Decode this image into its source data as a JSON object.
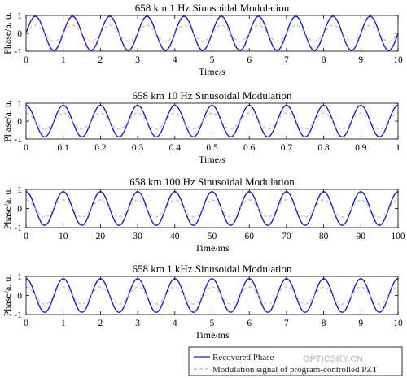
{
  "chart_data": [
    {
      "type": "line",
      "title": "658 km 1 Hz Sinusoidal Modulation",
      "xlabel": "Time/s",
      "ylabel": "Phase/a. u.",
      "xlim": [
        0,
        10
      ],
      "ylim": [
        -1,
        1
      ],
      "xticks": [
        "0",
        "1",
        "2",
        "3",
        "4",
        "5",
        "6",
        "7",
        "8",
        "9",
        "10"
      ],
      "yticks": [
        "-1",
        "0",
        "1"
      ],
      "frequency_cycles_per_unit": 1,
      "series": [
        {
          "name": "Recovered Phase",
          "function": "sine",
          "amplitude": 0.95,
          "phase": 0,
          "color": "#1f1fbf",
          "style": "solid"
        },
        {
          "name": "Modulation signal of program-controlled PZT",
          "function": "sine",
          "amplitude": 0.45,
          "phase": 0,
          "color": "#a8b8cc",
          "style": "dashed"
        }
      ]
    },
    {
      "type": "line",
      "title": "658 km 10 Hz Sinusoidal Modulation",
      "xlabel": "Time/s",
      "ylabel": "Phase/a. u.",
      "xlim": [
        0,
        1
      ],
      "ylim": [
        -1,
        1
      ],
      "xticks": [
        "0",
        "0.1",
        "0.2",
        "0.3",
        "0.4",
        "0.5",
        "0.6",
        "0.7",
        "0.8",
        "0.9",
        "1"
      ],
      "yticks": [
        "-1",
        "0",
        "1"
      ],
      "frequency_cycles_per_unit": 10,
      "series": [
        {
          "name": "Recovered Phase",
          "function": "cosine",
          "amplitude": 0.88,
          "phase": 0,
          "color": "#1f1fbf",
          "style": "solid"
        },
        {
          "name": "Modulation signal of program-controlled PZT",
          "function": "cosine",
          "amplitude": 0.45,
          "phase": 0,
          "color": "#a8b8cc",
          "style": "dashed"
        }
      ]
    },
    {
      "type": "line",
      "title": "658 km 100 Hz Sinusoidal Modulation",
      "xlabel": "Time/ms",
      "ylabel": "Phase/a. u.",
      "xlim": [
        0,
        100
      ],
      "ylim": [
        -1,
        1
      ],
      "xticks": [
        "0",
        "10",
        "20",
        "30",
        "40",
        "50",
        "60",
        "70",
        "80",
        "90",
        "100"
      ],
      "yticks": [
        "-1",
        "0",
        "1"
      ],
      "frequency_cycles_per_unit": 0.1,
      "series": [
        {
          "name": "Recovered Phase",
          "function": "cosine",
          "amplitude": 0.88,
          "phase": 0,
          "color": "#1f1fbf",
          "style": "solid"
        },
        {
          "name": "Modulation signal of program-controlled PZT",
          "function": "cosine",
          "amplitude": 0.45,
          "phase": 0,
          "color": "#a8b8cc",
          "style": "dashed"
        }
      ]
    },
    {
      "type": "line",
      "title": "658 km 1 kHz Sinusoidal Modulation",
      "xlabel": "Time/ms",
      "ylabel": "Phase/a. u.",
      "xlim": [
        0,
        10
      ],
      "ylim": [
        -1,
        1
      ],
      "xticks": [
        "0",
        "1",
        "2",
        "3",
        "4",
        "5",
        "6",
        "7",
        "8",
        "9",
        "10"
      ],
      "yticks": [
        "-1",
        "0",
        "1"
      ],
      "frequency_cycles_per_unit": 1,
      "series": [
        {
          "name": "Recovered Phase",
          "function": "cosine",
          "amplitude": 0.88,
          "phase": 0,
          "color": "#1f1fbf",
          "style": "solid"
        },
        {
          "name": "Modulation signal of program-controlled PZT",
          "function": "cosine",
          "amplitude": 0.45,
          "phase": 0,
          "color": "#a8b8cc",
          "style": "dashed"
        }
      ]
    }
  ],
  "legend": {
    "placement": "bottom-right",
    "entries": [
      {
        "label": "Recovered Phase",
        "color": "#1f1fbf",
        "style": "solid"
      },
      {
        "label": "Modulation signal of program-controlled PZT",
        "color": "#a8b8cc",
        "style": "dashed"
      }
    ]
  },
  "watermark": "OPTICSKY.CN"
}
